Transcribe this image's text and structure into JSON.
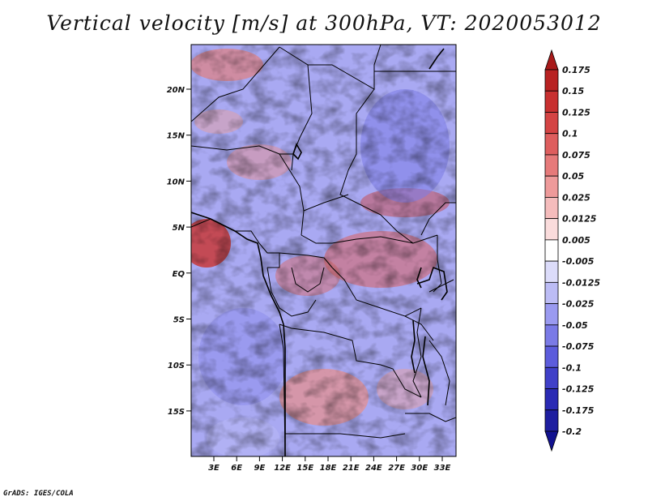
{
  "title": "Vertical velocity [m/s] at 300hPa, VT: 2020053012",
  "lat_labels": [
    "20N",
    "15N",
    "10N",
    "5N",
    "EQ",
    "5S",
    "10S",
    "15S"
  ],
  "lon_labels": [
    "3E",
    "6E",
    "9E",
    "12E",
    "15E",
    "18E",
    "21E",
    "24E",
    "27E",
    "30E",
    "33E"
  ],
  "colorbar": {
    "levels": [
      "0.175",
      "0.15",
      "0.125",
      "0.1",
      "0.075",
      "0.05",
      "0.025",
      "0.0125",
      "0.005",
      "-0.005",
      "-0.0125",
      "-0.025",
      "-0.05",
      "-0.075",
      "-0.1",
      "-0.125",
      "-0.175",
      "-0.2"
    ],
    "colors": [
      "#a81a1a",
      "#b82222",
      "#c83030",
      "#d44444",
      "#de5e5e",
      "#e67a7a",
      "#ee9a9a",
      "#f5bcbc",
      "#fadcdc",
      "#ffffff",
      "#dcdcfa",
      "#bcbcf5",
      "#9a9af0",
      "#7a7ae6",
      "#5c5cdc",
      "#4040c8",
      "#2a2ab4",
      "#1e1ea0",
      "#121290"
    ]
  },
  "credit": "GrADS: IGES/COLA"
}
